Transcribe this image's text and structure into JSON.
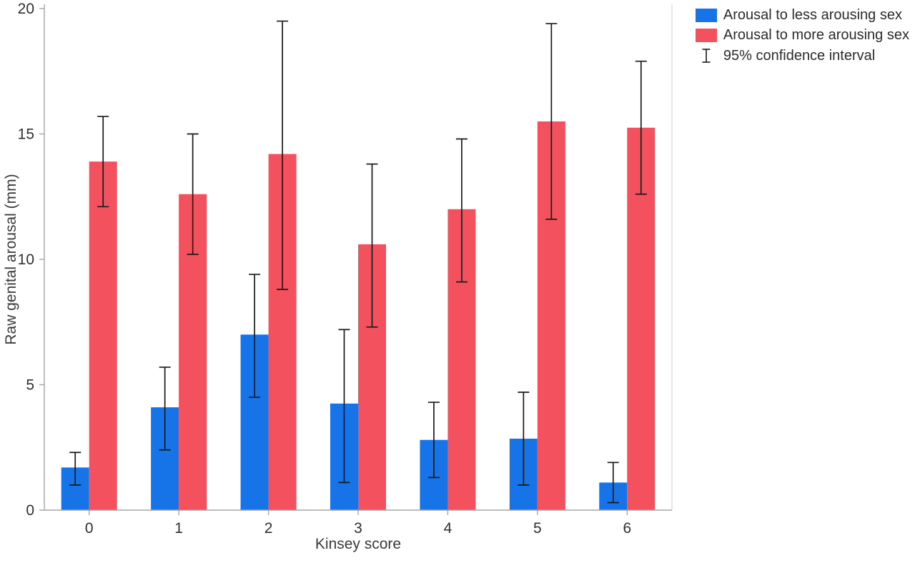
{
  "chart_data": {
    "type": "bar",
    "title": "",
    "xlabel": "Kinsey score",
    "ylabel": "Raw genital arousal (mm)",
    "ylim": [
      0,
      20
    ],
    "yticks": [
      0,
      5,
      10,
      15,
      20
    ],
    "categories": [
      "0",
      "1",
      "2",
      "3",
      "4",
      "5",
      "6"
    ],
    "series": [
      {
        "name": "Arousal to less arousing sex",
        "color": "#1673E8",
        "values": [
          1.7,
          4.1,
          7.0,
          4.25,
          2.8,
          2.85,
          1.1
        ],
        "ci_low": [
          1.0,
          2.4,
          4.5,
          1.1,
          1.3,
          1.0,
          0.3
        ],
        "ci_high": [
          2.3,
          5.7,
          9.4,
          7.2,
          4.3,
          4.7,
          1.9
        ]
      },
      {
        "name": "Arousal to more arousing sex",
        "color": "#F4515F",
        "values": [
          13.9,
          12.6,
          14.2,
          10.6,
          12.0,
          15.5,
          15.25
        ],
        "ci_low": [
          12.1,
          10.2,
          8.8,
          7.3,
          9.1,
          11.6,
          12.6
        ],
        "ci_high": [
          15.7,
          15.0,
          19.5,
          13.8,
          14.8,
          19.4,
          17.9
        ]
      }
    ],
    "legend": {
      "position": "top-right",
      "ci_label": "95% confidence interval"
    },
    "error_bar_color": "#1a1a1a",
    "axis_color": "#a6a6a6",
    "right_border_color": "#d9d9d9",
    "tick_label_color": "#303030",
    "grid": false
  }
}
